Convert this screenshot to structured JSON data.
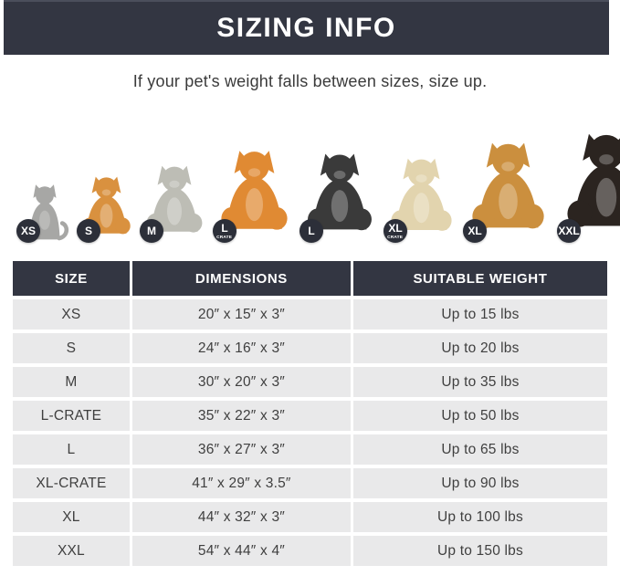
{
  "header": {
    "title": "SIZING INFO"
  },
  "subtitle": "If your pet's weight falls between sizes, size up.",
  "colors": {
    "header_background": "#333642",
    "table_header_background": "#333642",
    "row_background": "#e9e9ea",
    "badge_background": "#2c2f39",
    "text_dark": "#3b3b3b",
    "text_light": "#ffffff"
  },
  "pets": [
    {
      "name": "cat",
      "animal": "cat",
      "badge": "XS",
      "crate_label": "",
      "color": "#a7a7a5",
      "height": 72
    },
    {
      "name": "pomeranian",
      "animal": "dog",
      "badge": "S",
      "crate_label": "",
      "color": "#d9913f",
      "height": 88
    },
    {
      "name": "french-bulldog",
      "animal": "dog",
      "badge": "M",
      "crate_label": "",
      "color": "#bdbdb5",
      "height": 102
    },
    {
      "name": "shiba-inu",
      "animal": "dog",
      "badge": "L",
      "crate_label": "CRATE",
      "color": "#e08a33",
      "height": 122
    },
    {
      "name": "border-collie",
      "animal": "dog",
      "badge": "L",
      "crate_label": "",
      "color": "#3a3a3a",
      "height": 118
    },
    {
      "name": "labrador",
      "animal": "dog",
      "badge": "XL",
      "crate_label": "CRATE",
      "color": "#e2d4ae",
      "height": 112
    },
    {
      "name": "golden-retriever",
      "animal": "dog",
      "badge": "XL",
      "crate_label": "",
      "color": "#cb8f3e",
      "height": 132
    },
    {
      "name": "doberman",
      "animal": "dog",
      "badge": "XXL",
      "crate_label": "",
      "color": "#2b2420",
      "height": 144
    }
  ],
  "table": {
    "columns": [
      "SIZE",
      "DIMENSIONS",
      "SUITABLE WEIGHT"
    ],
    "rows": [
      {
        "size": "XS",
        "dimensions": "20″ x 15″ x 3″",
        "weight": "Up to 15 lbs"
      },
      {
        "size": "S",
        "dimensions": "24″ x 16″ x 3″",
        "weight": "Up to 20 lbs"
      },
      {
        "size": "M",
        "dimensions": "30″ x 20″ x 3″",
        "weight": "Up to 35 lbs"
      },
      {
        "size": "L-CRATE",
        "dimensions": "35″ x 22″ x 3″",
        "weight": "Up to 50 lbs"
      },
      {
        "size": "L",
        "dimensions": "36″ x 27″ x 3″",
        "weight": "Up to 65 lbs"
      },
      {
        "size": "XL-CRATE",
        "dimensions": "41″ x 29″ x 3.5″",
        "weight": "Up to 90 lbs"
      },
      {
        "size": "XL",
        "dimensions": "44″ x 32″ x 3″",
        "weight": "Up to 100 lbs"
      },
      {
        "size": "XXL",
        "dimensions": "54″ x 44″ x 4″",
        "weight": "Up to 150 lbs"
      }
    ]
  },
  "chart_data": {
    "type": "table",
    "title": "SIZING INFO",
    "columns": [
      "SIZE",
      "DIMENSIONS",
      "SUITABLE WEIGHT"
    ],
    "rows": [
      [
        "XS",
        "20″ x 15″ x 3″",
        "Up to 15 lbs"
      ],
      [
        "S",
        "24″ x 16″ x 3″",
        "Up to 20 lbs"
      ],
      [
        "M",
        "30″ x 20″ x 3″",
        "Up to 35 lbs"
      ],
      [
        "L-CRATE",
        "35″ x 22″ x 3″",
        "Up to 50 lbs"
      ],
      [
        "L",
        "36″ x 27″ x 3″",
        "Up to 65 lbs"
      ],
      [
        "XL-CRATE",
        "41″ x 29″ x 3.5″",
        "Up to 90 lbs"
      ],
      [
        "XL",
        "44″ x 32″ x 3″",
        "Up to 100 lbs"
      ],
      [
        "XXL",
        "54″ x 44″ x 4″",
        "Up to 150 lbs"
      ]
    ]
  }
}
